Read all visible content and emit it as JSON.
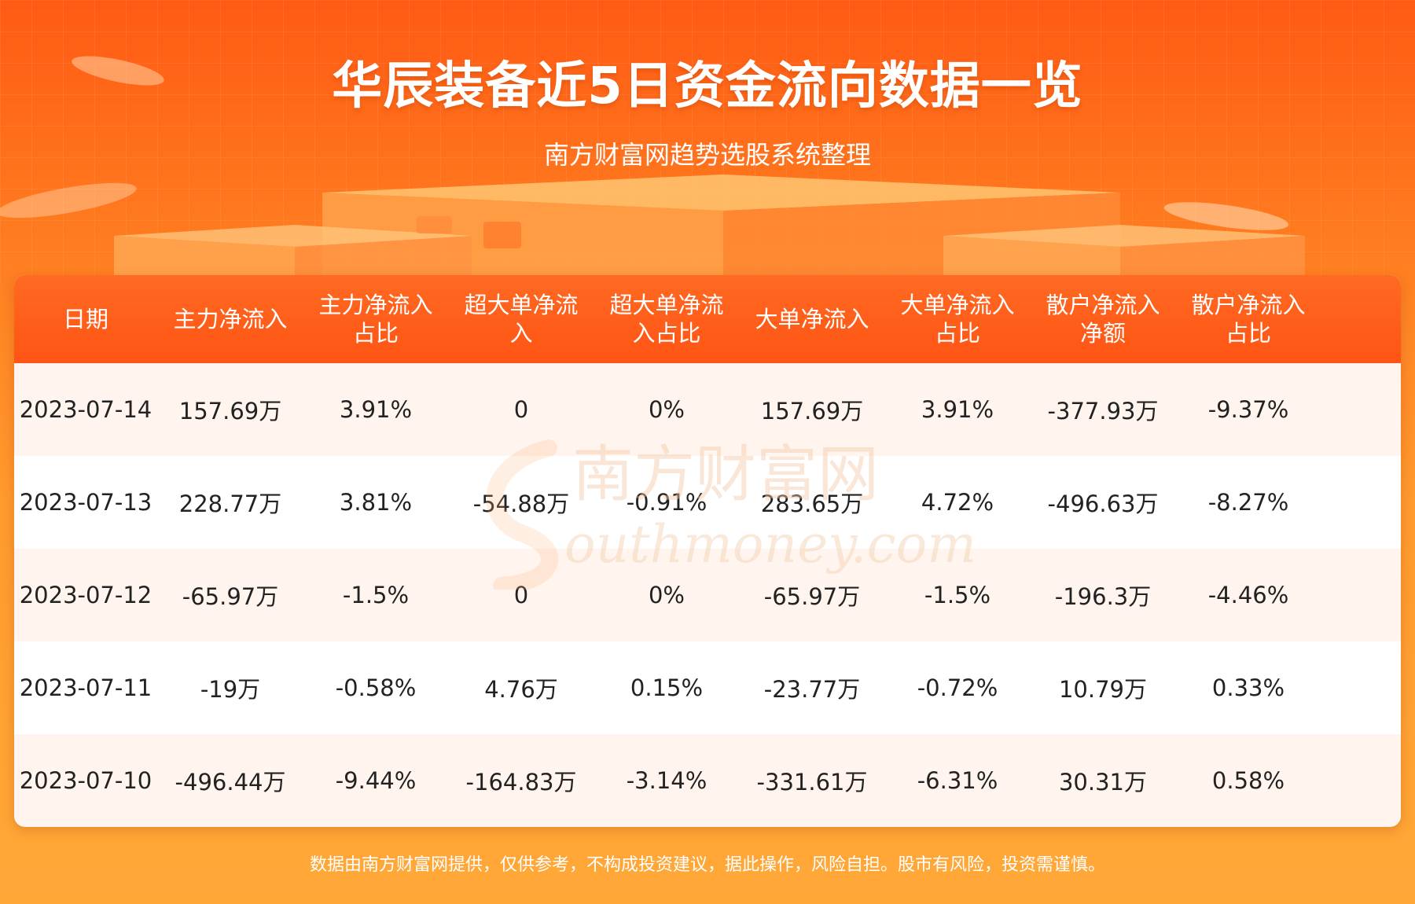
{
  "header": {
    "title": "华辰装备近5日资金流向数据一览",
    "subtitle": "南方财富网趋势选股系统整理"
  },
  "watermark": {
    "cn": "南方财富网",
    "en": "outhmoney.com"
  },
  "footer": {
    "disclaimer": "数据由南方财富网提供，仅供参考，不构成投资建议，据此操作，风险自担。股市有风险，投资需谨慎。"
  },
  "colors": {
    "header_bg": "#ff5a14",
    "table_head": "#ff5414",
    "row_tint": "#fff5ee"
  },
  "chart_data": {
    "type": "table",
    "columns": [
      [
        "日期"
      ],
      [
        "主力净流入"
      ],
      [
        "主力净流入",
        "占比"
      ],
      [
        "超大单净流",
        "入"
      ],
      [
        "超大单净流",
        "入占比"
      ],
      [
        "大单净流入"
      ],
      [
        "大单净流入",
        "占比"
      ],
      [
        "散户净流入",
        "净额"
      ],
      [
        "散户净流入",
        "占比"
      ]
    ],
    "rows": [
      [
        "2023-07-14",
        "157.69万",
        "3.91%",
        "0",
        "0%",
        "157.69万",
        "3.91%",
        "-377.93万",
        "-9.37%"
      ],
      [
        "2023-07-13",
        "228.77万",
        "3.81%",
        "-54.88万",
        "-0.91%",
        "283.65万",
        "4.72%",
        "-496.63万",
        "-8.27%"
      ],
      [
        "2023-07-12",
        "-65.97万",
        "-1.5%",
        "0",
        "0%",
        "-65.97万",
        "-1.5%",
        "-196.3万",
        "-4.46%"
      ],
      [
        "2023-07-11",
        "-19万",
        "-0.58%",
        "4.76万",
        "0.15%",
        "-23.77万",
        "-0.72%",
        "10.79万",
        "0.33%"
      ],
      [
        "2023-07-10",
        "-496.44万",
        "-9.44%",
        "-164.83万",
        "-3.14%",
        "-331.61万",
        "-6.31%",
        "30.31万",
        "0.58%"
      ]
    ]
  }
}
